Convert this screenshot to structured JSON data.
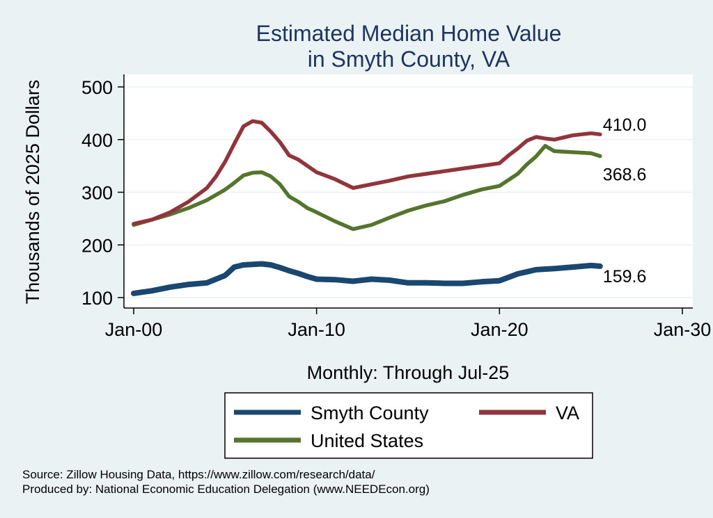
{
  "chart_data": {
    "type": "line",
    "title": [
      "Estimated Median Home Value",
      "in Smyth County, VA"
    ],
    "xlabel": "Monthly: Through Jul-25",
    "ylabel": "Thousands of 2025 Dollars",
    "xlim": [
      2000,
      2030
    ],
    "ylim": [
      100,
      500
    ],
    "x_ticks": [
      {
        "value": 2000,
        "label": "Jan-00"
      },
      {
        "value": 2010,
        "label": "Jan-10"
      },
      {
        "value": 2020,
        "label": "Jan-20"
      },
      {
        "value": 2030,
        "label": "Jan-30"
      }
    ],
    "y_ticks": [
      100,
      200,
      300,
      400,
      500
    ],
    "grid": true,
    "legend_position": "bottom",
    "series": [
      {
        "name": "Smyth County",
        "color": "#1a476f",
        "end_label": "159.6",
        "x": [
          2000.0,
          2001.0,
          2002.0,
          2003.0,
          2004.0,
          2005.0,
          2005.5,
          2006.0,
          2006.5,
          2007.0,
          2007.5,
          2008.0,
          2008.5,
          2009.0,
          2009.5,
          2010.0,
          2011.0,
          2012.0,
          2013.0,
          2014.0,
          2015.0,
          2016.0,
          2017.0,
          2018.0,
          2019.0,
          2020.0,
          2021.0,
          2022.0,
          2023.0,
          2024.0,
          2025.0,
          2025.5
        ],
        "y": [
          108,
          113,
          120,
          125,
          128,
          142,
          158,
          162,
          163,
          164,
          162,
          157,
          151,
          146,
          140,
          135,
          134,
          131,
          135,
          133,
          128,
          128,
          127,
          127,
          130,
          132,
          145,
          153,
          155,
          158,
          161,
          159.6
        ]
      },
      {
        "name": "VA",
        "color": "#90353b",
        "end_label": "410.0",
        "x": [
          2000.0,
          2001.0,
          2002.0,
          2003.0,
          2004.0,
          2004.5,
          2005.0,
          2005.5,
          2006.0,
          2006.5,
          2007.0,
          2007.5,
          2008.0,
          2008.5,
          2009.0,
          2010.0,
          2011.0,
          2012.0,
          2013.0,
          2014.0,
          2015.0,
          2016.0,
          2017.0,
          2018.0,
          2019.0,
          2020.0,
          2020.5,
          2021.0,
          2021.5,
          2022.0,
          2022.5,
          2023.0,
          2024.0,
          2025.0,
          2025.5
        ],
        "y": [
          240,
          248,
          262,
          282,
          308,
          330,
          358,
          392,
          425,
          435,
          432,
          415,
          395,
          370,
          362,
          338,
          325,
          308,
          315,
          322,
          330,
          335,
          340,
          345,
          350,
          355,
          370,
          383,
          398,
          405,
          402,
          400,
          408,
          412,
          410.0
        ]
      },
      {
        "name": "United States",
        "color": "#55752f",
        "end_label": "368.6",
        "x": [
          2000.0,
          2001.0,
          2002.0,
          2003.0,
          2004.0,
          2005.0,
          2005.5,
          2006.0,
          2006.5,
          2007.0,
          2007.5,
          2008.0,
          2008.5,
          2009.0,
          2009.5,
          2010.0,
          2011.0,
          2012.0,
          2013.0,
          2014.0,
          2015.0,
          2016.0,
          2017.0,
          2018.0,
          2019.0,
          2020.0,
          2021.0,
          2021.5,
          2022.0,
          2022.5,
          2023.0,
          2024.0,
          2025.0,
          2025.5
        ],
        "y": [
          238,
          248,
          258,
          270,
          285,
          305,
          318,
          332,
          337,
          338,
          330,
          315,
          292,
          282,
          270,
          262,
          245,
          230,
          238,
          252,
          265,
          275,
          283,
          295,
          305,
          312,
          335,
          353,
          368,
          388,
          378,
          376,
          374,
          368.6
        ]
      }
    ]
  },
  "footer": {
    "source": "Source: Zillow Housing Data, https://www.zillow.com/research/data/",
    "produced_by": "Produced by: National Economic Education Delegation (www.NEEDEcon.org)"
  }
}
